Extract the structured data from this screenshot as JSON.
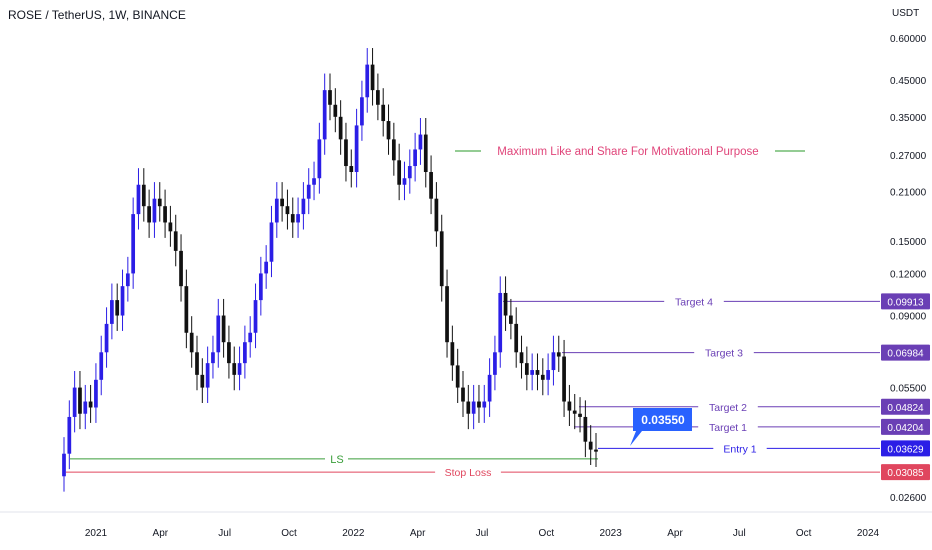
{
  "header": {
    "title": "ROSE / TetherUS, 1W, BINANCE"
  },
  "chart_data": {
    "type": "candlestick",
    "currency_label": "USDT",
    "y_scale": "log",
    "ylim": [
      0.0235,
      0.66
    ],
    "y_ticks": [
      "0.60000",
      "0.45000",
      "0.35000",
      "0.27000",
      "0.21000",
      "0.15000",
      "0.12000",
      "0.09000",
      "0.05500",
      "0.04200",
      "0.03085",
      "0.02600"
    ],
    "x_ticks": [
      "2021",
      "Apr",
      "Jul",
      "Oct",
      "2022",
      "Apr",
      "Jul",
      "Oct",
      "2023",
      "Apr",
      "Jul",
      "Oct",
      "2024"
    ],
    "up_color": "#2b1ee6",
    "down_color": "#111111",
    "annotation": "Maximum Like and Share For Motivational Purpose",
    "callout": {
      "label": "0.03550",
      "value": 0.0355
    },
    "levels": [
      {
        "label": "Target 4",
        "value": 0.09913,
        "badge": "0.09913",
        "color": "#6a3fb5"
      },
      {
        "label": "Target 3",
        "value": 0.06984,
        "badge": "0.06984",
        "color": "#6a3fb5"
      },
      {
        "label": "Target 2",
        "value": 0.04824,
        "badge": "0.04824",
        "color": "#6a3fb5"
      },
      {
        "label": "Target 1",
        "value": 0.04204,
        "badge": "0.04204",
        "color": "#6a3fb5"
      },
      {
        "label": "Entry 1",
        "value": 0.03629,
        "badge": "0.03629",
        "color": "#2b1ee6"
      },
      {
        "label": "Stop Loss",
        "value": 0.03085,
        "badge": "0.03085",
        "color": "#e0465e"
      }
    ],
    "ls_line": {
      "label": "LS",
      "value": 0.0338
    },
    "candles_close": [
      0.035,
      0.045,
      0.055,
      0.046,
      0.05,
      0.048,
      0.058,
      0.07,
      0.085,
      0.1,
      0.09,
      0.11,
      0.12,
      0.18,
      0.22,
      0.19,
      0.17,
      0.2,
      0.19,
      0.17,
      0.16,
      0.14,
      0.11,
      0.08,
      0.07,
      0.06,
      0.055,
      0.065,
      0.07,
      0.09,
      0.075,
      0.065,
      0.06,
      0.065,
      0.075,
      0.08,
      0.1,
      0.12,
      0.13,
      0.17,
      0.2,
      0.19,
      0.18,
      0.17,
      0.18,
      0.2,
      0.22,
      0.23,
      0.3,
      0.42,
      0.38,
      0.35,
      0.3,
      0.25,
      0.24,
      0.33,
      0.4,
      0.5,
      0.42,
      0.38,
      0.34,
      0.3,
      0.26,
      0.22,
      0.23,
      0.25,
      0.28,
      0.31,
      0.24,
      0.2,
      0.16,
      0.11,
      0.075,
      0.064,
      0.055,
      0.05,
      0.046,
      0.05,
      0.048,
      0.05,
      0.06,
      0.07,
      0.105,
      0.09,
      0.085,
      0.07,
      0.065,
      0.06,
      0.062,
      0.06,
      0.058,
      0.062,
      0.07,
      0.068,
      0.05,
      0.047,
      0.046,
      0.045,
      0.038,
      0.036,
      0.0355
    ],
    "candles_open": [
      0.03,
      0.035,
      0.045,
      0.055,
      0.046,
      0.05,
      0.048,
      0.058,
      0.07,
      0.085,
      0.1,
      0.09,
      0.11,
      0.12,
      0.18,
      0.22,
      0.19,
      0.17,
      0.2,
      0.19,
      0.17,
      0.16,
      0.14,
      0.11,
      0.08,
      0.07,
      0.06,
      0.055,
      0.065,
      0.07,
      0.09,
      0.075,
      0.065,
      0.06,
      0.065,
      0.075,
      0.08,
      0.1,
      0.12,
      0.13,
      0.17,
      0.2,
      0.19,
      0.18,
      0.17,
      0.18,
      0.2,
      0.22,
      0.23,
      0.3,
      0.42,
      0.38,
      0.35,
      0.3,
      0.25,
      0.24,
      0.33,
      0.4,
      0.5,
      0.42,
      0.38,
      0.34,
      0.3,
      0.26,
      0.22,
      0.23,
      0.25,
      0.28,
      0.31,
      0.24,
      0.2,
      0.16,
      0.11,
      0.075,
      0.064,
      0.055,
      0.05,
      0.046,
      0.05,
      0.048,
      0.05,
      0.06,
      0.07,
      0.105,
      0.09,
      0.085,
      0.07,
      0.065,
      0.06,
      0.062,
      0.06,
      0.058,
      0.062,
      0.07,
      0.068,
      0.05,
      0.047,
      0.046,
      0.045,
      0.038,
      0.036
    ]
  }
}
